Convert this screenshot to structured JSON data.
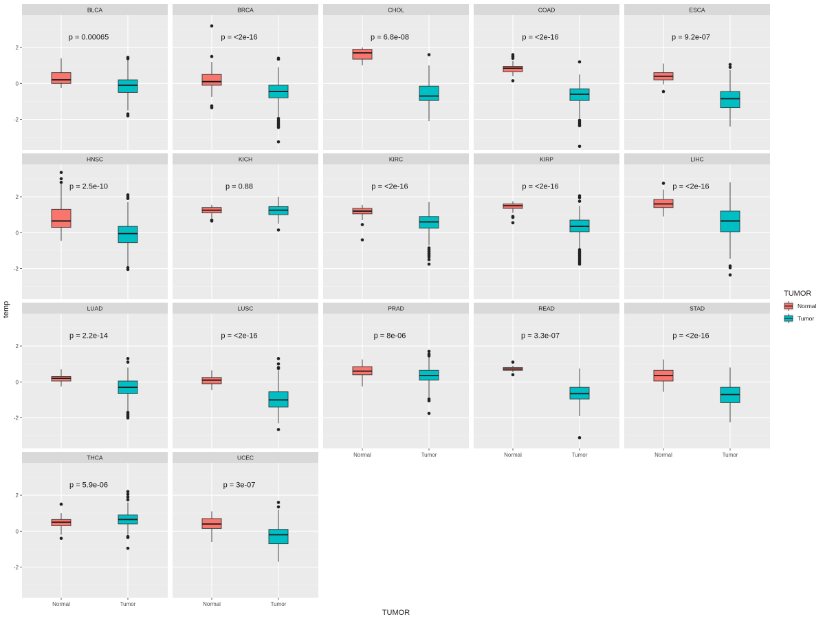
{
  "chart_data": {
    "type": "boxplot",
    "layout": "faceted",
    "xlabel": "TUMOR",
    "ylabel": "temp",
    "ylim": [
      -3.7,
      3.8
    ],
    "yticks": [
      -2,
      0,
      2
    ],
    "categories": [
      "Normal",
      "Tumor"
    ],
    "legend": {
      "title": "TUMOR",
      "placement": "right",
      "items": [
        {
          "label": "Normal",
          "color": "#F8766D"
        },
        {
          "label": "Tumor",
          "color": "#00BFC4"
        }
      ]
    },
    "colors": {
      "panel_bg": "#EBEBEB",
      "strip_bg": "#D9D9D9",
      "grid": "#FFFFFF",
      "normal": "#F8766D",
      "tumor": "#00BFC4"
    },
    "facets": [
      {
        "name": "BLCA",
        "pval": "p = 0.00065",
        "boxes": [
          {
            "group": "Normal",
            "whisker_low": -0.25,
            "q1": 0.0,
            "median": 0.2,
            "q3": 0.6,
            "whisker_high": 1.4,
            "outliers": []
          },
          {
            "group": "Tumor",
            "whisker_low": -1.5,
            "q1": -0.5,
            "median": -0.1,
            "q3": 0.2,
            "whisker_high": 1.3,
            "outliers": [
              1.38,
              1.45,
              -1.7,
              -1.8
            ]
          }
        ]
      },
      {
        "name": "BRCA",
        "pval": "p = <2e-16",
        "boxes": [
          {
            "group": "Normal",
            "whisker_low": -0.75,
            "q1": -0.1,
            "median": 0.1,
            "q3": 0.5,
            "whisker_high": 1.2,
            "outliers": [
              3.2,
              1.5,
              -1.25,
              -1.35
            ]
          },
          {
            "group": "Tumor",
            "whisker_low": -1.9,
            "q1": -0.8,
            "median": -0.45,
            "q3": -0.1,
            "whisker_high": 0.9,
            "outliers": [
              1.4,
              1.35,
              -1.95,
              -2.05,
              -2.15,
              -2.25,
              -2.35,
              -2.45,
              -3.25
            ]
          }
        ]
      },
      {
        "name": "CHOL",
        "pval": "p = 6.8e-08",
        "boxes": [
          {
            "group": "Normal",
            "whisker_low": 1.0,
            "q1": 1.35,
            "median": 1.7,
            "q3": 1.9,
            "whisker_high": 2.0,
            "outliers": []
          },
          {
            "group": "Tumor",
            "whisker_low": -2.1,
            "q1": -0.95,
            "median": -0.7,
            "q3": -0.15,
            "whisker_high": 1.0,
            "outliers": [
              1.6
            ]
          }
        ]
      },
      {
        "name": "COAD",
        "pval": "p = <2e-16",
        "boxes": [
          {
            "group": "Normal",
            "whisker_low": 0.4,
            "q1": 0.65,
            "median": 0.85,
            "q3": 0.95,
            "whisker_high": 1.25,
            "outliers": [
              1.6,
              1.5,
              1.4,
              0.15
            ]
          },
          {
            "group": "Tumor",
            "whisker_low": -1.95,
            "q1": -0.95,
            "median": -0.6,
            "q3": -0.3,
            "whisker_high": 0.5,
            "outliers": [
              1.2,
              -2.05,
              -2.15,
              -2.25,
              -2.35,
              -3.5
            ]
          }
        ]
      },
      {
        "name": "ESCA",
        "pval": "p = 9.2e-07",
        "boxes": [
          {
            "group": "Normal",
            "whisker_low": -0.05,
            "q1": 0.2,
            "median": 0.4,
            "q3": 0.6,
            "whisker_high": 1.1,
            "outliers": [
              -0.45
            ]
          },
          {
            "group": "Tumor",
            "whisker_low": -2.4,
            "q1": -1.35,
            "median": -0.85,
            "q3": -0.45,
            "whisker_high": 0.75,
            "outliers": [
              1.05,
              0.9
            ]
          }
        ]
      },
      {
        "name": "HNSC",
        "pval": "p = 2.5e-10",
        "boxes": [
          {
            "group": "Normal",
            "whisker_low": -0.45,
            "q1": 0.3,
            "median": 0.65,
            "q3": 1.3,
            "whisker_high": 2.7,
            "outliers": [
              3.35,
              3.0,
              2.8
            ]
          },
          {
            "group": "Tumor",
            "whisker_low": -1.9,
            "q1": -0.55,
            "median": -0.05,
            "q3": 0.35,
            "whisker_high": 1.7,
            "outliers": [
              2.1,
              2.0,
              1.9,
              -1.95,
              -2.05
            ]
          }
        ]
      },
      {
        "name": "KICH",
        "pval": "p = 0.88",
        "boxes": [
          {
            "group": "Normal",
            "whisker_low": 0.8,
            "q1": 1.1,
            "median": 1.25,
            "q3": 1.4,
            "whisker_high": 1.55,
            "outliers": [
              0.7,
              0.65
            ]
          },
          {
            "group": "Tumor",
            "whisker_low": 0.5,
            "q1": 1.0,
            "median": 1.25,
            "q3": 1.45,
            "whisker_high": 2.0,
            "outliers": [
              0.15
            ]
          }
        ]
      },
      {
        "name": "KIRC",
        "pval": "p = <2e-16",
        "boxes": [
          {
            "group": "Normal",
            "whisker_low": 0.7,
            "q1": 1.05,
            "median": 1.2,
            "q3": 1.35,
            "whisker_high": 1.55,
            "outliers": [
              0.45,
              -0.4
            ]
          },
          {
            "group": "Tumor",
            "whisker_low": -0.7,
            "q1": 0.25,
            "median": 0.6,
            "q3": 0.9,
            "whisker_high": 1.7,
            "outliers": [
              -0.85,
              -0.95,
              -1.05,
              -1.15,
              -1.25,
              -1.35,
              -1.5,
              -1.75
            ]
          }
        ]
      },
      {
        "name": "KIRP",
        "pval": "p = <2e-16",
        "boxes": [
          {
            "group": "Normal",
            "whisker_low": 1.1,
            "q1": 1.35,
            "median": 1.5,
            "q3": 1.6,
            "whisker_high": 1.75,
            "outliers": [
              0.9,
              0.85,
              0.55
            ]
          },
          {
            "group": "Tumor",
            "whisker_low": -0.9,
            "q1": 0.05,
            "median": 0.35,
            "q3": 0.7,
            "whisker_high": 1.5,
            "outliers": [
              2.05,
              1.95,
              1.75,
              -0.95,
              -1.05,
              -1.15,
              -1.25,
              -1.35,
              -1.45,
              -1.55,
              -1.65,
              -1.75
            ]
          }
        ]
      },
      {
        "name": "LIHC",
        "pval": "p = <2e-16",
        "boxes": [
          {
            "group": "Normal",
            "whisker_low": 0.9,
            "q1": 1.4,
            "median": 1.6,
            "q3": 1.85,
            "whisker_high": 2.4,
            "outliers": [
              2.75
            ]
          },
          {
            "group": "Tumor",
            "whisker_low": -1.45,
            "q1": 0.05,
            "median": 0.65,
            "q3": 1.2,
            "whisker_high": 2.8,
            "outliers": [
              -1.85,
              -1.95,
              -2.35
            ]
          }
        ]
      },
      {
        "name": "LUAD",
        "pval": "p = 2.2e-14",
        "boxes": [
          {
            "group": "Normal",
            "whisker_low": -0.25,
            "q1": 0.05,
            "median": 0.2,
            "q3": 0.3,
            "whisker_high": 0.7,
            "outliers": []
          },
          {
            "group": "Tumor",
            "whisker_low": -1.6,
            "q1": -0.65,
            "median": -0.3,
            "q3": 0.05,
            "whisker_high": 0.8,
            "outliers": [
              1.3,
              1.1,
              -1.7,
              -1.8,
              -1.9,
              -2.0
            ]
          }
        ]
      },
      {
        "name": "LUSC",
        "pval": "p = <2e-16",
        "boxes": [
          {
            "group": "Normal",
            "whisker_low": -0.45,
            "q1": -0.1,
            "median": 0.1,
            "q3": 0.25,
            "whisker_high": 0.65,
            "outliers": []
          },
          {
            "group": "Tumor",
            "whisker_low": -2.3,
            "q1": -1.4,
            "median": -1.0,
            "q3": -0.55,
            "whisker_high": 0.65,
            "outliers": [
              1.3,
              1.0,
              0.8,
              0.75,
              -2.65
            ]
          }
        ]
      },
      {
        "name": "PRAD",
        "pval": "p = 8e-06",
        "boxes": [
          {
            "group": "Normal",
            "whisker_low": -0.25,
            "q1": 0.4,
            "median": 0.6,
            "q3": 0.85,
            "whisker_high": 1.25,
            "outliers": []
          },
          {
            "group": "Tumor",
            "whisker_low": -0.85,
            "q1": 0.1,
            "median": 0.35,
            "q3": 0.65,
            "whisker_high": 1.4,
            "outliers": [
              1.7,
              1.55,
              1.45,
              -0.95,
              -1.05,
              -1.75
            ]
          }
        ]
      },
      {
        "name": "READ",
        "pval": "p = 3.3e-07",
        "boxes": [
          {
            "group": "Normal",
            "whisker_low": 0.55,
            "q1": 0.65,
            "median": 0.72,
            "q3": 0.8,
            "whisker_high": 0.9,
            "outliers": [
              1.1,
              0.4
            ]
          },
          {
            "group": "Tumor",
            "whisker_low": -1.9,
            "q1": -0.95,
            "median": -0.65,
            "q3": -0.3,
            "whisker_high": 0.75,
            "outliers": [
              -3.1
            ]
          }
        ]
      },
      {
        "name": "STAD",
        "pval": "p = <2e-16",
        "boxes": [
          {
            "group": "Normal",
            "whisker_low": -0.55,
            "q1": 0.05,
            "median": 0.35,
            "q3": 0.65,
            "whisker_high": 1.25,
            "outliers": []
          },
          {
            "group": "Tumor",
            "whisker_low": -2.25,
            "q1": -1.15,
            "median": -0.7,
            "q3": -0.3,
            "whisker_high": 0.8,
            "outliers": []
          }
        ]
      },
      {
        "name": "THCA",
        "pval": "p = 5.9e-06",
        "boxes": [
          {
            "group": "Normal",
            "whisker_low": -0.2,
            "q1": 0.3,
            "median": 0.5,
            "q3": 0.65,
            "whisker_high": 1.0,
            "outliers": [
              1.5,
              -0.4
            ]
          },
          {
            "group": "Tumor",
            "whisker_low": -0.2,
            "q1": 0.4,
            "median": 0.65,
            "q3": 0.9,
            "whisker_high": 1.6,
            "outliers": [
              2.2,
              2.05,
              1.9,
              1.75,
              -0.3,
              -0.35,
              -0.95
            ]
          }
        ]
      },
      {
        "name": "UCEC",
        "pval": "p = 3e-07",
        "boxes": [
          {
            "group": "Normal",
            "whisker_low": -0.6,
            "q1": 0.15,
            "median": 0.4,
            "q3": 0.7,
            "whisker_high": 1.1,
            "outliers": []
          },
          {
            "group": "Tumor",
            "whisker_low": -1.7,
            "q1": -0.7,
            "median": -0.2,
            "q3": 0.1,
            "whisker_high": 1.2,
            "outliers": [
              1.6,
              1.35
            ]
          }
        ]
      }
    ]
  }
}
